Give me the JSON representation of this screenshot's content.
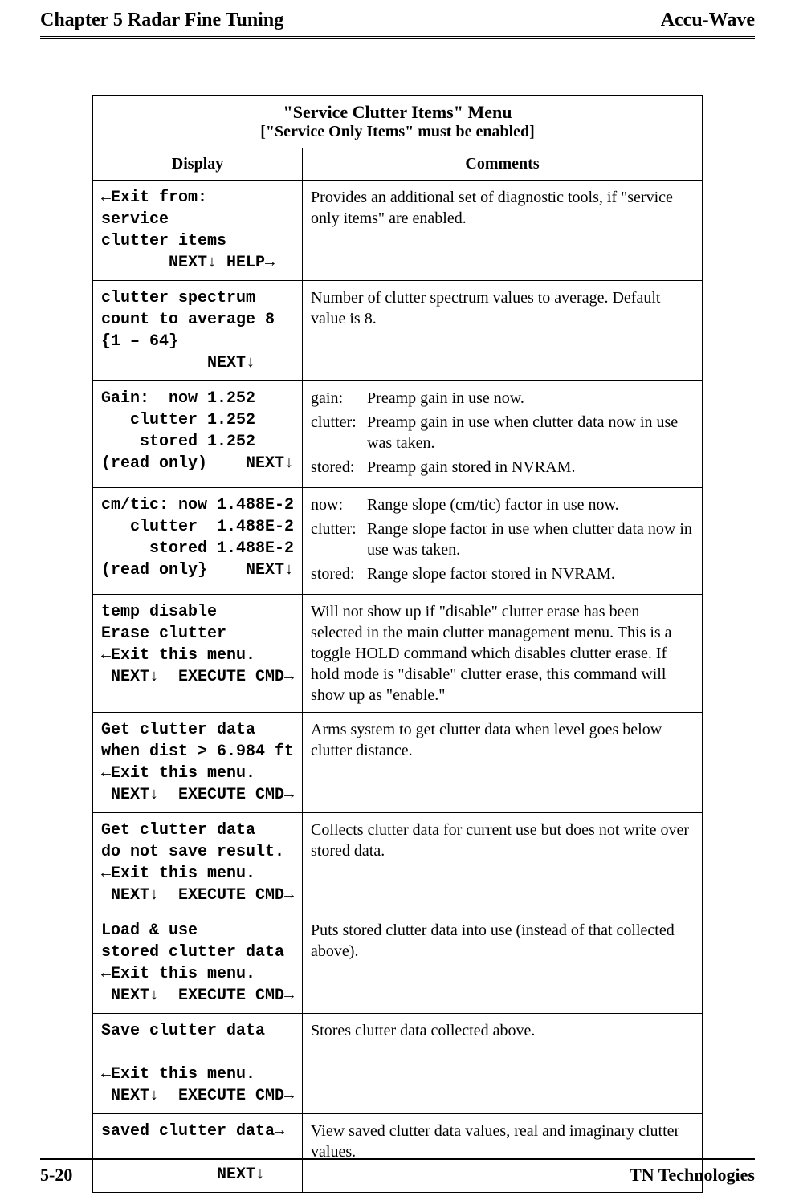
{
  "header": {
    "left": "Chapter 5  Radar Fine Tuning",
    "right": "Accu-Wave"
  },
  "table": {
    "title_main": "\"Service Clutter Items\" Menu",
    "title_sub": "[\"Service Only Items\" must be enabled]",
    "col1": "Display",
    "col2": "Comments",
    "rows": [
      {
        "display": "←Exit from:\nservice\nclutter items\n       NEXT↓ HELP→",
        "comment": "Provides an additional set of diagnostic tools, if \"service only items\" are enabled."
      },
      {
        "display": "clutter spectrum\ncount to average 8\n{1 – 64}\n           NEXT↓",
        "comment": "Number of clutter spectrum values to average. Default value is 8."
      },
      {
        "display": "Gain:  now 1.252\n   clutter 1.252\n    stored 1.252\n(read only)    NEXT↓",
        "defs": [
          {
            "term": "gain:",
            "desc": "Preamp gain in use now."
          },
          {
            "term": "clutter:",
            "desc": "Preamp gain in use when clutter data now in use was taken."
          },
          {
            "term": "stored:",
            "desc": "Preamp gain stored in NVRAM."
          }
        ]
      },
      {
        "display": "cm/tic: now 1.488E-2\n   clutter  1.488E-2\n     stored 1.488E-2\n(read only}    NEXT↓",
        "defs": [
          {
            "term": "now:",
            "desc": "Range slope (cm/tic) factor in use now."
          },
          {
            "term": "clutter:",
            "desc": "Range slope factor in use when clutter data now in use was taken."
          },
          {
            "term": "stored:",
            "desc": "Range slope factor stored in NVRAM."
          }
        ]
      },
      {
        "display": "temp disable\nErase clutter\n←Exit this menu.\n NEXT↓  EXECUTE CMD→",
        "comment": "Will not show up if \"disable\" clutter erase has been selected in the main clutter management menu. This is a toggle HOLD command which disables clutter erase. If hold mode is \"disable\" clutter erase, this command will show up as \"enable.\""
      },
      {
        "display": "Get clutter data\nwhen dist > 6.984 ft\n←Exit this menu.\n NEXT↓  EXECUTE CMD→",
        "comment": "Arms system to get clutter data when level goes below clutter distance."
      },
      {
        "display": "Get clutter data\ndo not save result.\n←Exit this menu.\n NEXT↓  EXECUTE CMD→",
        "comment": "Collects clutter data for current use but does not write over stored data."
      },
      {
        "display": "Load & use\nstored clutter data\n←Exit this menu.\n NEXT↓  EXECUTE CMD→",
        "comment": "Puts stored clutter data into use (instead of that collected above)."
      },
      {
        "display": "Save clutter data\n\n←Exit this menu.\n NEXT↓  EXECUTE CMD→",
        "comment": "Stores clutter data collected above."
      },
      {
        "display": "saved clutter data→\n\n            NEXT↓",
        "comment": "View saved clutter data values, real and imaginary clutter values."
      }
    ]
  },
  "footer": {
    "left": "5-20",
    "right": "TN Technologies"
  }
}
